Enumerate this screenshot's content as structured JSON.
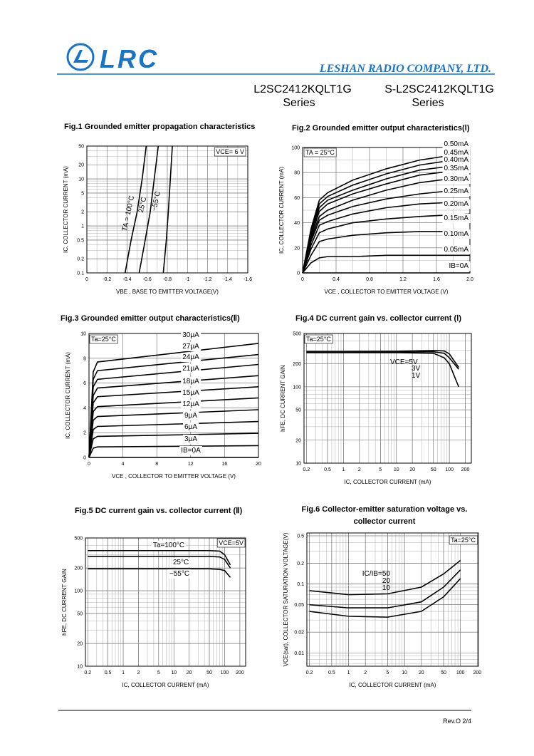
{
  "header": {
    "logo": "LRC",
    "company": "LESHAN RADIO COMPANY, LTD.",
    "parts": [
      {
        "name": "L2SC2412KQLT1G",
        "series": "Series"
      },
      {
        "name": "S-L2SC2412KQLT1G",
        "series": "Series"
      }
    ]
  },
  "chart_data": [
    {
      "type": "line",
      "title": "Fig.1  Grounded emitter propagation characteristics",
      "x_label": "VBE , BASE TO EMITTER VOLTAGE(V)",
      "y_label": "IC, COLLECTOR CURRENT (mA)",
      "xscale": "linear",
      "yscale": "log",
      "grid": true,
      "minor_grid": true,
      "xlim": [
        0,
        -1.6
      ],
      "ylim": [
        0.1,
        50
      ],
      "xticks": [
        0,
        -0.2,
        -0.4,
        -0.6,
        -0.8,
        -1.0,
        -1.2,
        -1.4,
        -1.6
      ],
      "yticks": [
        0.1,
        0.2,
        0.5,
        1,
        2,
        5,
        10,
        20,
        50
      ],
      "annotations": [
        "VCE= 6 V"
      ],
      "series": [
        {
          "name": "TA = 100°C",
          "color": "#000000",
          "x": [
            -0.38,
            -0.44,
            -0.5,
            -0.55,
            -0.59
          ],
          "values": [
            0.1,
            0.5,
            2,
            10,
            50
          ]
        },
        {
          "name": "25°C",
          "color": "#000000",
          "x": [
            -0.52,
            -0.58,
            -0.63,
            -0.67,
            -0.71
          ],
          "values": [
            0.1,
            0.5,
            2,
            10,
            50
          ]
        },
        {
          "name": "−55°C",
          "color": "#000000",
          "x": [
            -0.76,
            -0.79,
            -0.81,
            -0.83,
            -0.85
          ],
          "values": [
            0.1,
            0.5,
            2,
            10,
            50
          ]
        }
      ]
    },
    {
      "type": "line",
      "title": "Fig.2  Grounded emitter output characteristics(Ⅰ)",
      "x_label": "VCE , COLLECTOR TO EMITTER VOLTAGE (V)",
      "y_label": "IC, COLLECTOR CURRENT (mA)",
      "xscale": "linear",
      "yscale": "linear",
      "grid": true,
      "minor_grid": true,
      "xlim": [
        0,
        2
      ],
      "ylim": [
        0,
        100
      ],
      "xticks": [
        0,
        0.4,
        0.8,
        1.2,
        1.6,
        {
          "value": 2,
          "label": "2.0"
        }
      ],
      "yticks": [
        0,
        20,
        40,
        60,
        80,
        100
      ],
      "annotations": [
        "TA = 25°C"
      ],
      "x": [
        0,
        0.1,
        0.2,
        0.3,
        0.6,
        1.0,
        1.4,
        2.0
      ],
      "series": [
        {
          "name": "0.50mA",
          "color": "#000000",
          "values": [
            0,
            35,
            58,
            64,
            74,
            83,
            90,
            96
          ]
        },
        {
          "name": "0.45mA",
          "color": "#000000",
          "values": [
            0,
            33,
            55,
            61,
            70,
            79,
            86,
            92
          ]
        },
        {
          "name": "0.40mA",
          "color": "#000000",
          "values": [
            0,
            31,
            52,
            58,
            66,
            75,
            82,
            87
          ]
        },
        {
          "name": "0.35mA",
          "color": "#000000",
          "values": [
            0,
            29,
            49,
            55,
            63,
            71,
            78,
            83
          ]
        },
        {
          "name": "0.30mA",
          "color": "#000000",
          "values": [
            0,
            27,
            45,
            50,
            58,
            66,
            72,
            77
          ]
        },
        {
          "name": "0.25mA",
          "color": "#000000",
          "values": [
            0,
            25,
            42,
            46,
            53,
            59,
            63,
            67
          ]
        },
        {
          "name": "0.20mA",
          "color": "#000000",
          "values": [
            0,
            22,
            38,
            41,
            47,
            52,
            55,
            57
          ]
        },
        {
          "name": "0.15mA",
          "color": "#000000",
          "values": [
            0,
            19,
            32,
            35,
            40,
            43,
            45,
            47
          ]
        },
        {
          "name": "0.10mA",
          "color": "#000000",
          "values": [
            0,
            14,
            25,
            27,
            30,
            32,
            33,
            33
          ]
        },
        {
          "name": "0.05mA",
          "color": "#000000",
          "values": [
            0,
            8,
            12,
            13,
            13,
            14,
            14,
            14
          ]
        },
        {
          "name": "IB=0A",
          "color": "#000000",
          "values": [
            0,
            0,
            0,
            0,
            0,
            0,
            0,
            0
          ]
        }
      ]
    },
    {
      "type": "line",
      "title": "Fig.3  Grounded emitter output characteristics(Ⅱ)",
      "x_label": "VCE , COLLECTOR TO EMITTER VOLTAGE (V)",
      "y_label": "IC, COLLECTOR CURRENT (mA)",
      "xscale": "linear",
      "yscale": "linear",
      "grid": true,
      "minor_grid": false,
      "xlim": [
        0,
        20
      ],
      "ylim": [
        0,
        10
      ],
      "xticks": [
        0,
        4,
        8,
        12,
        16,
        20
      ],
      "yticks": [
        0,
        2,
        4,
        6,
        8,
        10
      ],
      "annotations": [
        "Ta=25°C"
      ],
      "x": [
        0,
        0.5,
        1,
        20
      ],
      "series": [
        {
          "name": "30μA",
          "color": "#000000",
          "values": [
            0,
            6.9,
            7.7,
            9.2
          ]
        },
        {
          "name": "27μA",
          "color": "#000000",
          "values": [
            0,
            6.3,
            7.0,
            8.3
          ]
        },
        {
          "name": "24μA",
          "color": "#000000",
          "values": [
            0,
            5.7,
            6.3,
            7.5
          ]
        },
        {
          "name": "21μA",
          "color": "#000000",
          "values": [
            0,
            5.0,
            5.6,
            6.6
          ]
        },
        {
          "name": "18μA",
          "color": "#000000",
          "values": [
            0,
            4.4,
            4.9,
            5.7
          ]
        },
        {
          "name": "15μA",
          "color": "#000000",
          "values": [
            0,
            3.7,
            4.1,
            4.8
          ]
        },
        {
          "name": "12μA",
          "color": "#000000",
          "values": [
            0,
            3.0,
            3.3,
            3.85
          ]
        },
        {
          "name": "9μA",
          "color": "#000000",
          "values": [
            0,
            2.25,
            2.5,
            2.9
          ]
        },
        {
          "name": "6μA",
          "color": "#000000",
          "values": [
            0,
            1.5,
            1.7,
            1.95
          ]
        },
        {
          "name": "3μA",
          "color": "#000000",
          "values": [
            0,
            0.75,
            0.85,
            0.95
          ]
        },
        {
          "name": "IB=0A",
          "color": "#000000",
          "values": [
            0,
            0,
            0,
            0
          ]
        }
      ]
    },
    {
      "type": "line",
      "title": "Fig.4  DC current gain vs. collector current (Ⅰ)",
      "x_label": "IC, COLLECTOR CURRENT  (mA)",
      "y_label": "hFE, DC  CURRENT GAIN",
      "xscale": "log",
      "yscale": "log",
      "grid": true,
      "minor_grid": true,
      "xlim": [
        0.18,
        260
      ],
      "ylim": [
        10,
        500
      ],
      "xticks": [
        0.2,
        0.5,
        1,
        2,
        5,
        10,
        20,
        50,
        100,
        200
      ],
      "yticks": [
        10,
        20,
        50,
        100,
        200,
        500
      ],
      "annotations": [
        "Ta=25°C"
      ],
      "x": [
        0.2,
        1,
        10,
        50,
        80,
        100,
        150
      ],
      "series": [
        {
          "name": "VCE=5V",
          "color": "#000000",
          "values": [
            290,
            290,
            292,
            300,
            295,
            270,
            180
          ]
        },
        {
          "name": "3V",
          "color": "#000000",
          "values": [
            285,
            285,
            285,
            288,
            275,
            240,
            170
          ]
        },
        {
          "name": "1V",
          "color": "#000000",
          "values": [
            280,
            280,
            280,
            275,
            240,
            200,
            100
          ]
        }
      ]
    },
    {
      "type": "line",
      "title": "Fig.5  DC current gain vs. collector current (Ⅱ)",
      "x_label": "IC, COLLECTOR CURRENT (mA)",
      "y_label": "hFE, DC  CURRENT GAIN",
      "xscale": "log",
      "yscale": "log",
      "grid": true,
      "minor_grid": true,
      "xlim": [
        0.18,
        260
      ],
      "ylim": [
        10,
        500
      ],
      "xticks": [
        0.2,
        0.5,
        1,
        2,
        5,
        10,
        20,
        50,
        100,
        200
      ],
      "yticks": [
        10,
        20,
        50,
        100,
        200,
        500
      ],
      "annotations": [
        "VCE=5V"
      ],
      "x": [
        0.2,
        1,
        10,
        50,
        80,
        100,
        130
      ],
      "series": [
        {
          "name": "Ta=100°C",
          "color": "#000000",
          "values": [
            340,
            340,
            340,
            340,
            335,
            300,
            220
          ]
        },
        {
          "name": "25°C",
          "color": "#000000",
          "values": [
            285,
            285,
            285,
            285,
            280,
            260,
            200
          ]
        },
        {
          "name": "−55°C",
          "color": "#000000",
          "values": [
            195,
            195,
            195,
            195,
            192,
            185,
            150
          ]
        }
      ]
    },
    {
      "type": "line",
      "title": [
        "Fig.6  Collector-emitter saturation voltage vs.",
        "collector current"
      ],
      "x_label": "IC, COLLECTOR CURRENT (mA)",
      "y_label": "VCE(sat), COLLECTOR  SATURATION  VOLTAGE(V)",
      "xscale": "log",
      "yscale": "log",
      "grid": true,
      "minor_grid": true,
      "xlim": [
        0.18,
        210
      ],
      "ylim": [
        0.0064,
        0.55
      ],
      "xticks": [
        0.2,
        0.5,
        1,
        2,
        5,
        10,
        20,
        50,
        100,
        200
      ],
      "yticks": [
        0.01,
        0.02,
        0.05,
        0.1,
        0.2,
        0.5
      ],
      "annotations": [
        "Ta=25°C"
      ],
      "x": [
        0.2,
        1,
        5,
        20,
        50,
        100
      ],
      "series": [
        {
          "name": "IC/IB=50",
          "color": "#000000",
          "values": [
            0.08,
            0.07,
            0.072,
            0.09,
            0.14,
            0.22
          ]
        },
        {
          "name": "20",
          "color": "#000000",
          "values": [
            0.05,
            0.045,
            0.045,
            0.055,
            0.09,
            0.16
          ]
        },
        {
          "name": "10",
          "color": "#000000",
          "values": [
            0.04,
            0.034,
            0.033,
            0.04,
            0.065,
            0.12
          ]
        }
      ]
    }
  ],
  "footer": {
    "revision": "Rev.O  2/4"
  }
}
